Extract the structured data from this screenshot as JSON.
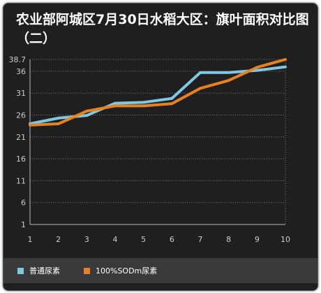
{
  "chart_data": {
    "type": "line",
    "title": "农业部阿城区7月30日水稻大区：旗叶面积对比图（二）",
    "x": [
      1,
      2,
      3,
      4,
      5,
      6,
      7,
      8,
      9,
      10
    ],
    "x_tick_labels": [
      "1",
      "2",
      "3",
      "4",
      "5",
      "6",
      "7",
      "8",
      "9",
      "10"
    ],
    "y_tick_labels": [
      "38.7",
      "36",
      "31",
      "26",
      "21",
      "16",
      "11",
      "6",
      "1"
    ],
    "y_ticks": [
      38.7,
      36,
      31,
      26,
      21,
      16,
      11,
      6,
      1
    ],
    "ylim": [
      1,
      38.7
    ],
    "xlim": [
      1,
      10
    ],
    "grid": true,
    "legend_position": "bottom",
    "series": [
      {
        "name": "普通尿素",
        "color": "#7ec8e3",
        "values": [
          24.0,
          25.3,
          25.9,
          28.7,
          28.9,
          29.8,
          35.7,
          35.7,
          36.2,
          37.0
        ]
      },
      {
        "name": "100%SODm尿素",
        "color": "#e8821e",
        "values": [
          23.7,
          24.0,
          26.9,
          28.1,
          28.1,
          28.6,
          32.1,
          33.9,
          36.9,
          38.7
        ]
      }
    ]
  }
}
